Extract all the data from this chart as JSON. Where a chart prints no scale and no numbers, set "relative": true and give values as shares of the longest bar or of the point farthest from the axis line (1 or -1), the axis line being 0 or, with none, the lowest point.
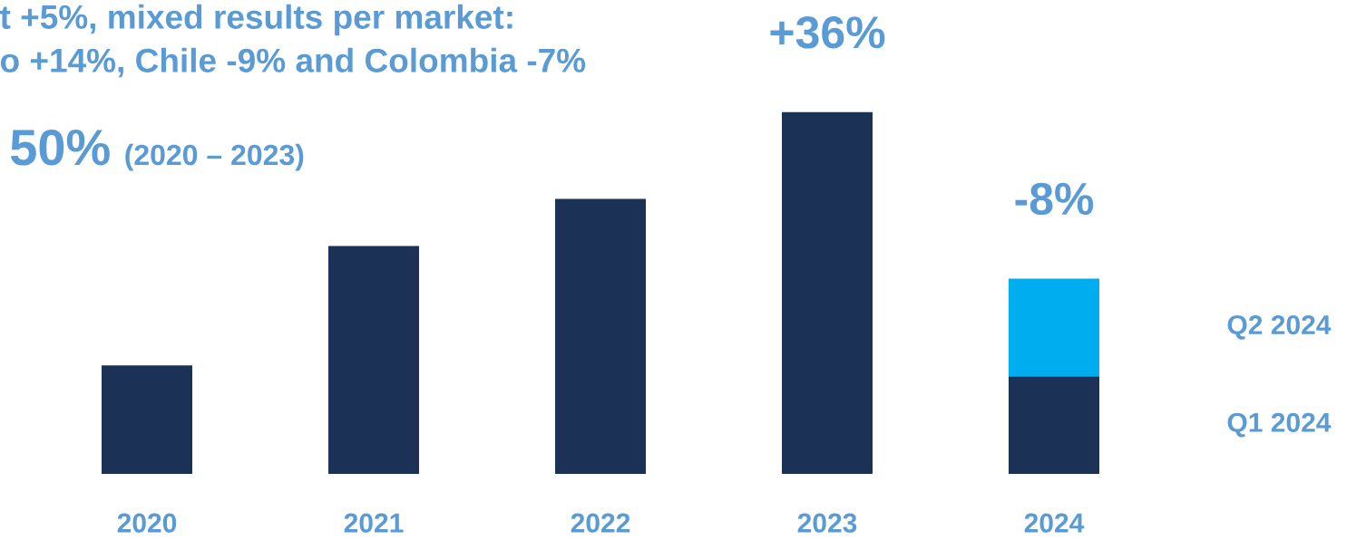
{
  "chart_data": {
    "type": "bar",
    "title": "t +5%, mixed results per market:",
    "subtitle": "o +14%, Chile -9% and Colombia -7%",
    "categories": [
      "2020",
      "2021",
      "2022",
      "2023",
      "2024"
    ],
    "relative": true,
    "stacked": true,
    "series": [
      {
        "name": "Q1 2024",
        "color": "#1b3156",
        "values": [
          0.3,
          0.63,
          0.76,
          1,
          0.27
        ]
      },
      {
        "name": "Q2 2024",
        "color": "#00aeef",
        "values": [
          null,
          null,
          null,
          null,
          0.27
        ]
      }
    ],
    "annotations": [
      "50%",
      "(2020 – 2023)",
      {
        "text": "+36%",
        "x": "2023",
        "y": 1
      },
      {
        "text": "-8%",
        "x": "2024",
        "y": 0.54
      }
    ]
  }
}
